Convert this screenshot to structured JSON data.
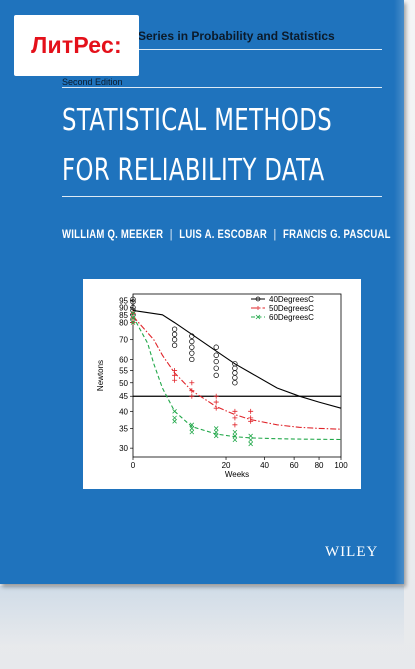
{
  "cover": {
    "series": "Series in Probability and Statistics",
    "edition": "Second Edition",
    "title_line1": "STATISTICAL METHODS",
    "title_line2": "FOR RELIABILITY DATA",
    "authors": [
      "WILLIAM Q. MEEKER",
      "LUIS A. ESCOBAR",
      "FRANCIS G. PASCUAL"
    ],
    "author_separator": "|",
    "publisher": "WILEY",
    "background_color": "#1f73bd"
  },
  "badge": {
    "label": "ЛитРес:",
    "color": "#e4101a"
  },
  "chart_data": {
    "type": "scatter",
    "xlabel": "Weeks",
    "ylabel": "Newtons",
    "x_ticks": [
      "0",
      "20",
      "40",
      "60",
      "80",
      "100"
    ],
    "x_tick_values": [
      0,
      20,
      40,
      60,
      80,
      100
    ],
    "y_ticks": [
      "95",
      "90",
      "85",
      "80",
      "70",
      "60",
      "55",
      "50",
      "45",
      "40",
      "35",
      "30"
    ],
    "y_tick_values": [
      95,
      90,
      85,
      80,
      70,
      60,
      55,
      50,
      45,
      40,
      35,
      30
    ],
    "ylim": [
      28,
      100
    ],
    "xlim": [
      0,
      100
    ],
    "x_scale": "sqrt",
    "y_scale": "log",
    "threshold": 45,
    "legend_position": "top-right",
    "series": [
      {
        "name": "40DegreesC",
        "color": "#000000",
        "marker": "circle",
        "line": "solid",
        "points": [
          [
            0,
            96
          ],
          [
            0,
            94
          ],
          [
            0,
            90
          ],
          [
            0,
            88
          ],
          [
            0,
            85
          ],
          [
            0,
            82
          ],
          [
            4,
            76
          ],
          [
            4,
            73
          ],
          [
            4,
            70
          ],
          [
            4,
            67
          ],
          [
            8,
            72
          ],
          [
            8,
            69
          ],
          [
            8,
            66
          ],
          [
            8,
            63
          ],
          [
            8,
            60
          ],
          [
            16,
            66
          ],
          [
            16,
            62
          ],
          [
            16,
            59
          ],
          [
            16,
            56
          ],
          [
            16,
            53
          ],
          [
            24,
            58
          ],
          [
            24,
            56
          ],
          [
            24,
            54
          ],
          [
            24,
            52
          ],
          [
            24,
            50
          ]
        ],
        "fit": [
          [
            0,
            88
          ],
          [
            2,
            85
          ],
          [
            4,
            80
          ],
          [
            8,
            73
          ],
          [
            16,
            64
          ],
          [
            24,
            58
          ],
          [
            32,
            54
          ],
          [
            48,
            48
          ],
          [
            64,
            45
          ],
          [
            80,
            43
          ],
          [
            100,
            41
          ]
        ]
      },
      {
        "name": "50DegreesC",
        "color": "#e0242a",
        "marker": "plus",
        "line": "dash-dot",
        "points": [
          [
            0,
            86
          ],
          [
            0,
            83
          ],
          [
            0,
            80
          ],
          [
            4,
            55
          ],
          [
            4,
            53
          ],
          [
            4,
            51
          ],
          [
            8,
            50
          ],
          [
            8,
            47
          ],
          [
            8,
            45
          ],
          [
            16,
            45
          ],
          [
            16,
            43
          ],
          [
            16,
            41
          ],
          [
            24,
            40
          ],
          [
            24,
            38
          ],
          [
            24,
            36
          ],
          [
            32,
            40
          ],
          [
            32,
            38
          ],
          [
            32,
            37
          ]
        ],
        "fit": [
          [
            0,
            84
          ],
          [
            1,
            70
          ],
          [
            2,
            62
          ],
          [
            4,
            54
          ],
          [
            8,
            47
          ],
          [
            16,
            41.5
          ],
          [
            24,
            39
          ],
          [
            32,
            37.5
          ],
          [
            48,
            36
          ],
          [
            64,
            35.3
          ],
          [
            80,
            35
          ],
          [
            100,
            34.8
          ]
        ]
      },
      {
        "name": "60DegreesC",
        "color": "#22a84a",
        "marker": "x",
        "line": "dashed",
        "points": [
          [
            0,
            86
          ],
          [
            0,
            83
          ],
          [
            0,
            80
          ],
          [
            4,
            40
          ],
          [
            4,
            38
          ],
          [
            4,
            37
          ],
          [
            8,
            36
          ],
          [
            8,
            35
          ],
          [
            8,
            34
          ],
          [
            16,
            35
          ],
          [
            16,
            34
          ],
          [
            16,
            33
          ],
          [
            24,
            34
          ],
          [
            24,
            33
          ],
          [
            24,
            32
          ],
          [
            32,
            33
          ],
          [
            32,
            32
          ],
          [
            32,
            31
          ]
        ],
        "fit": [
          [
            0,
            84
          ],
          [
            0.5,
            68
          ],
          [
            1,
            58
          ],
          [
            2,
            48
          ],
          [
            4,
            40
          ],
          [
            8,
            35.5
          ],
          [
            16,
            33.5
          ],
          [
            24,
            32.8
          ],
          [
            32,
            32.5
          ],
          [
            48,
            32.3
          ],
          [
            64,
            32.2
          ],
          [
            100,
            32.1
          ]
        ]
      }
    ]
  }
}
